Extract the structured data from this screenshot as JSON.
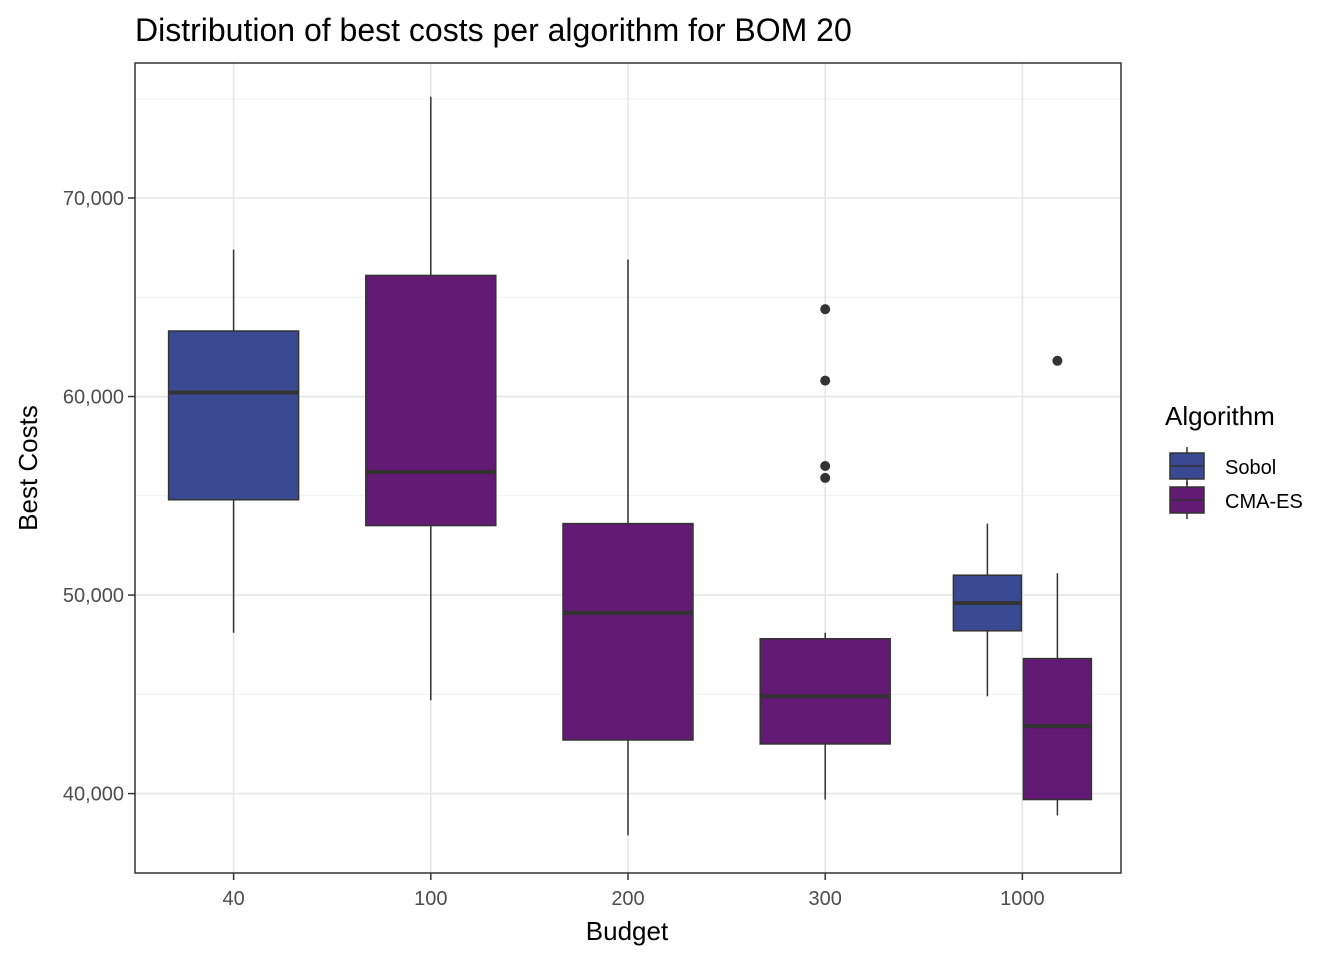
{
  "chart_data": {
    "type": "boxplot",
    "title": "Distribution of best costs per algorithm for BOM 20",
    "xlabel": "Budget",
    "ylabel": "Best Costs",
    "categories": [
      "40",
      "100",
      "200",
      "300",
      "1000"
    ],
    "y_ticks": [
      40000,
      50000,
      60000,
      70000
    ],
    "y_tick_labels": [
      "40,000",
      "50,000",
      "60,000",
      "70,000"
    ],
    "ylim": [
      36000,
      76800
    ],
    "grid": true,
    "legend": {
      "title": "Algorithm",
      "position": "right",
      "entries": [
        "Sobol",
        "CMA-ES"
      ]
    },
    "series": [
      {
        "name": "Sobol",
        "color": "#3A4A92",
        "boxes": [
          {
            "category": "40",
            "min": 48100,
            "q1": 54800,
            "median": 60200,
            "q3": 63300,
            "max": 67400,
            "outliers": []
          },
          {
            "category": "1000",
            "min": 44900,
            "q1": 48200,
            "median": 49600,
            "q3": 51000,
            "max": 53600,
            "outliers": []
          }
        ]
      },
      {
        "name": "CMA-ES",
        "color": "#621A74",
        "boxes": [
          {
            "category": "100",
            "min": 44700,
            "q1": 53500,
            "median": 56200,
            "q3": 66100,
            "max": 75100,
            "outliers": []
          },
          {
            "category": "200",
            "min": 37900,
            "q1": 42700,
            "median": 49100,
            "q3": 53600,
            "max": 66900,
            "outliers": []
          },
          {
            "category": "300",
            "min": 39700,
            "q1": 42500,
            "median": 44900,
            "q3": 47800,
            "max": 48100,
            "outliers": [
              55900,
              56500,
              60800,
              64400
            ]
          },
          {
            "category": "1000",
            "min": 38900,
            "q1": 39700,
            "median": 43400,
            "q3": 46800,
            "max": 51100,
            "outliers": [
              61800
            ]
          }
        ]
      }
    ]
  }
}
